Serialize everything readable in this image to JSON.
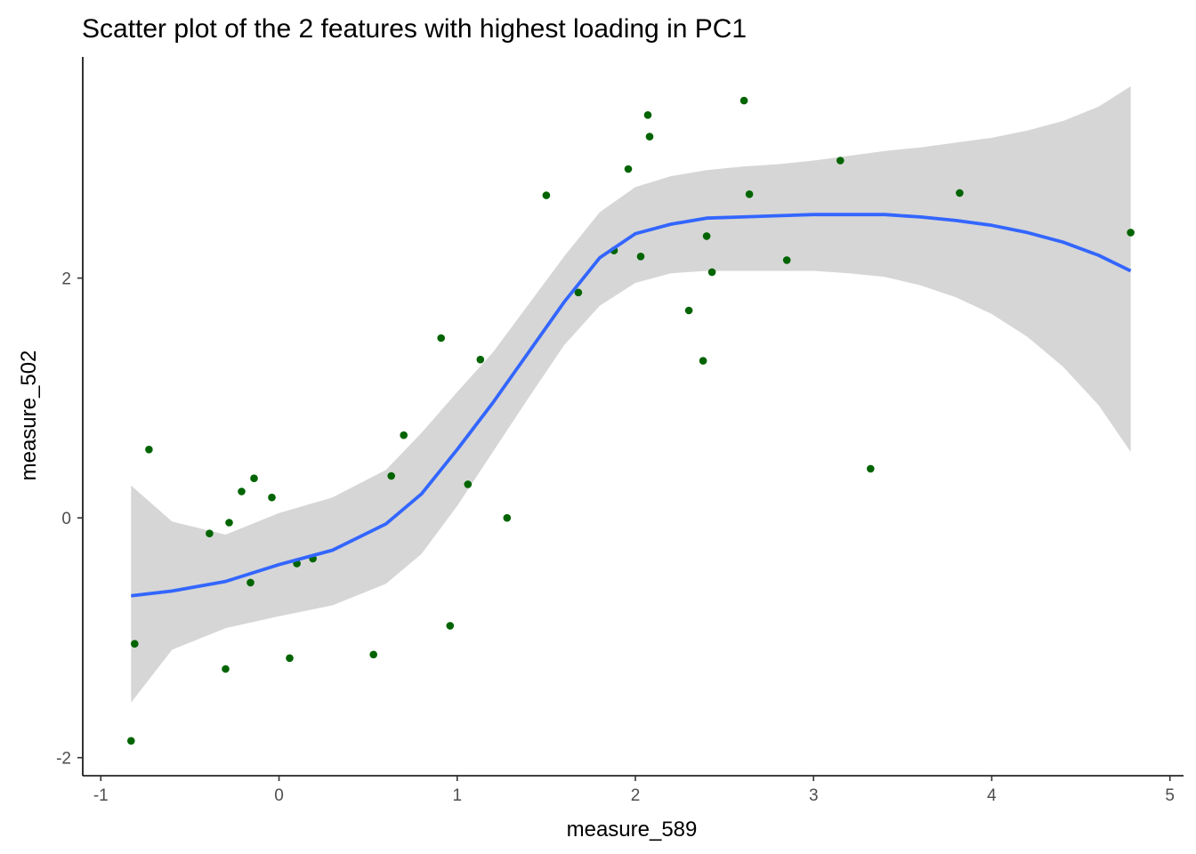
{
  "chart_data": {
    "type": "scatter",
    "title": "Scatter plot of the 2 features with highest loading in PC1",
    "xlabel": "measure_589",
    "ylabel": "measure_502",
    "xlim": [
      -1.0,
      5.0
    ],
    "ylim": [
      -2.0,
      3.5
    ],
    "x_ticks": [
      -1,
      0,
      1,
      2,
      3,
      4,
      5
    ],
    "y_ticks": [
      -2,
      0,
      2
    ],
    "grid": false,
    "point_color": "#006400",
    "points": [
      {
        "x": -0.83,
        "y": -1.86
      },
      {
        "x": -0.81,
        "y": -1.05
      },
      {
        "x": -0.73,
        "y": 0.57
      },
      {
        "x": -0.39,
        "y": -0.13
      },
      {
        "x": -0.3,
        "y": -1.26
      },
      {
        "x": -0.28,
        "y": -0.04
      },
      {
        "x": -0.21,
        "y": 0.22
      },
      {
        "x": -0.16,
        "y": -0.54
      },
      {
        "x": -0.14,
        "y": 0.33
      },
      {
        "x": -0.04,
        "y": 0.17
      },
      {
        "x": 0.06,
        "y": -1.17
      },
      {
        "x": 0.1,
        "y": -0.38
      },
      {
        "x": 0.19,
        "y": -0.34
      },
      {
        "x": 0.53,
        "y": -1.14
      },
      {
        "x": 0.63,
        "y": 0.35
      },
      {
        "x": 0.7,
        "y": 0.69
      },
      {
        "x": 0.91,
        "y": 1.5
      },
      {
        "x": 0.96,
        "y": -0.9
      },
      {
        "x": 1.06,
        "y": 0.28
      },
      {
        "x": 1.13,
        "y": 1.32
      },
      {
        "x": 1.28,
        "y": 0.0
      },
      {
        "x": 1.5,
        "y": 2.69
      },
      {
        "x": 1.68,
        "y": 1.88
      },
      {
        "x": 1.88,
        "y": 2.23
      },
      {
        "x": 1.96,
        "y": 2.91
      },
      {
        "x": 2.03,
        "y": 2.18
      },
      {
        "x": 2.07,
        "y": 3.36
      },
      {
        "x": 2.08,
        "y": 3.18
      },
      {
        "x": 2.3,
        "y": 1.73
      },
      {
        "x": 2.38,
        "y": 1.31
      },
      {
        "x": 2.4,
        "y": 2.35
      },
      {
        "x": 2.43,
        "y": 2.05
      },
      {
        "x": 2.61,
        "y": 3.48
      },
      {
        "x": 2.64,
        "y": 2.7
      },
      {
        "x": 2.85,
        "y": 2.15
      },
      {
        "x": 3.15,
        "y": 2.98
      },
      {
        "x": 3.32,
        "y": 0.41
      },
      {
        "x": 3.82,
        "y": 2.71
      },
      {
        "x": 4.78,
        "y": 2.38
      }
    ],
    "smooth": {
      "color": "#3366FF",
      "band_color": "#d6d6d6",
      "x": [
        -0.83,
        -0.6,
        -0.3,
        0.0,
        0.3,
        0.6,
        0.8,
        1.0,
        1.2,
        1.4,
        1.6,
        1.8,
        2.0,
        2.2,
        2.4,
        2.6,
        2.8,
        3.0,
        3.2,
        3.4,
        3.6,
        3.8,
        4.0,
        4.2,
        4.4,
        4.6,
        4.78
      ],
      "y": [
        -0.65,
        -0.61,
        -0.53,
        -0.39,
        -0.27,
        -0.05,
        0.2,
        0.57,
        0.96,
        1.38,
        1.8,
        2.17,
        2.37,
        2.45,
        2.5,
        2.51,
        2.52,
        2.53,
        2.53,
        2.53,
        2.51,
        2.48,
        2.44,
        2.38,
        2.3,
        2.19,
        2.06
      ],
      "lower": [
        -1.54,
        -1.1,
        -0.92,
        -0.82,
        -0.73,
        -0.55,
        -0.3,
        0.1,
        0.55,
        1.0,
        1.44,
        1.77,
        1.96,
        2.04,
        2.06,
        2.06,
        2.06,
        2.06,
        2.04,
        2.01,
        1.94,
        1.84,
        1.7,
        1.51,
        1.26,
        0.94,
        0.55
      ],
      "upper": [
        0.27,
        -0.03,
        -0.14,
        0.04,
        0.17,
        0.4,
        0.71,
        1.05,
        1.38,
        1.78,
        2.18,
        2.55,
        2.76,
        2.85,
        2.9,
        2.93,
        2.95,
        2.98,
        3.02,
        3.06,
        3.09,
        3.13,
        3.17,
        3.23,
        3.31,
        3.43,
        3.6
      ]
    }
  }
}
